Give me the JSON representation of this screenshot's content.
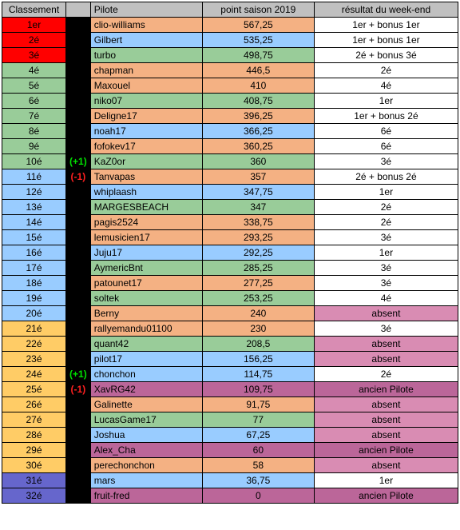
{
  "colors": {
    "header": "#c0c0c0",
    "delta_bg": "#000000",
    "delta_up": "#00e000",
    "delta_down": "#ff2020",
    "red": "#ff0000",
    "green": "#99cc99",
    "blue": "#99ccff",
    "orange": "#f4b183",
    "yellow": "#ffcc66",
    "purple": "#6666cc",
    "white": "#ffffff",
    "pink": "#d98cb3",
    "darkpink": "#bb6699"
  },
  "headers": {
    "rank": "Classement",
    "delta": "",
    "pilot": "Pilote",
    "points": "point saison 2019",
    "result": "résultat du week-end"
  },
  "rows": [
    {
      "rank": "1er",
      "delta": "",
      "pilot": "clio-williams",
      "points": "567,25",
      "result": "1er + bonus 1er",
      "rank_bg": "red",
      "pilot_bg": "orange",
      "points_bg": "orange",
      "result_bg": "white"
    },
    {
      "rank": "2é",
      "delta": "",
      "pilot": "Gilbert",
      "points": "535,25",
      "result": "1er + bonus 1er",
      "rank_bg": "red",
      "pilot_bg": "blue",
      "points_bg": "blue",
      "result_bg": "white"
    },
    {
      "rank": "3é",
      "delta": "",
      "pilot": "turbo",
      "points": "498,75",
      "result": "2é + bonus 3é",
      "rank_bg": "red",
      "pilot_bg": "green",
      "points_bg": "green",
      "result_bg": "white"
    },
    {
      "rank": "4é",
      "delta": "",
      "pilot": "chapman",
      "points": "446,5",
      "result": "2é",
      "rank_bg": "green",
      "pilot_bg": "orange",
      "points_bg": "orange",
      "result_bg": "white"
    },
    {
      "rank": "5é",
      "delta": "",
      "pilot": "Maxouel",
      "points": "410",
      "result": "4é",
      "rank_bg": "green",
      "pilot_bg": "orange",
      "points_bg": "orange",
      "result_bg": "white"
    },
    {
      "rank": "6é",
      "delta": "",
      "pilot": "niko07",
      "points": "408,75",
      "result": "1er",
      "rank_bg": "green",
      "pilot_bg": "green",
      "points_bg": "green",
      "result_bg": "white"
    },
    {
      "rank": "7é",
      "delta": "",
      "pilot": "Deligne17",
      "points": "396,25",
      "result": "1er + bonus 2é",
      "rank_bg": "green",
      "pilot_bg": "orange",
      "points_bg": "orange",
      "result_bg": "white"
    },
    {
      "rank": "8é",
      "delta": "",
      "pilot": "noah17",
      "points": "366,25",
      "result": "6é",
      "rank_bg": "green",
      "pilot_bg": "blue",
      "points_bg": "blue",
      "result_bg": "white"
    },
    {
      "rank": "9é",
      "delta": "",
      "pilot": "fofokev17",
      "points": "360,25",
      "result": "6é",
      "rank_bg": "green",
      "pilot_bg": "orange",
      "points_bg": "orange",
      "result_bg": "white"
    },
    {
      "rank": "10é",
      "delta": "(+1)",
      "delta_dir": "up",
      "pilot": "KaZ0or",
      "points": "360",
      "result": "3é",
      "rank_bg": "green",
      "pilot_bg": "green",
      "points_bg": "green",
      "result_bg": "white"
    },
    {
      "rank": "11é",
      "delta": "(-1)",
      "delta_dir": "down",
      "pilot": "Tanvapas",
      "points": "357",
      "result": "2é + bonus 2é",
      "rank_bg": "blue",
      "pilot_bg": "orange",
      "points_bg": "orange",
      "result_bg": "white"
    },
    {
      "rank": "12é",
      "delta": "",
      "pilot": "whiplaash",
      "points": "347,75",
      "result": "1er",
      "rank_bg": "blue",
      "pilot_bg": "blue",
      "points_bg": "blue",
      "result_bg": "white"
    },
    {
      "rank": "13é",
      "delta": "",
      "pilot": "MARGESBEACH",
      "points": "347",
      "result": "2é",
      "rank_bg": "blue",
      "pilot_bg": "green",
      "points_bg": "green",
      "result_bg": "white"
    },
    {
      "rank": "14é",
      "delta": "",
      "pilot": "pagis2524",
      "points": "338,75",
      "result": "2é",
      "rank_bg": "blue",
      "pilot_bg": "orange",
      "points_bg": "orange",
      "result_bg": "white"
    },
    {
      "rank": "15é",
      "delta": "",
      "pilot": "lemusicien17",
      "points": "293,25",
      "result": "3é",
      "rank_bg": "blue",
      "pilot_bg": "orange",
      "points_bg": "orange",
      "result_bg": "white"
    },
    {
      "rank": "16é",
      "delta": "",
      "pilot": "Juju17",
      "points": "292,25",
      "result": "1er",
      "rank_bg": "blue",
      "pilot_bg": "blue",
      "points_bg": "blue",
      "result_bg": "white"
    },
    {
      "rank": "17é",
      "delta": "",
      "pilot": "AymericBnt",
      "points": "285,25",
      "result": "3é",
      "rank_bg": "blue",
      "pilot_bg": "green",
      "points_bg": "green",
      "result_bg": "white"
    },
    {
      "rank": "18é",
      "delta": "",
      "pilot": "patounet17",
      "points": "277,25",
      "result": "3é",
      "rank_bg": "blue",
      "pilot_bg": "orange",
      "points_bg": "orange",
      "result_bg": "white"
    },
    {
      "rank": "19é",
      "delta": "",
      "pilot": "soltek",
      "points": "253,25",
      "result": "4é",
      "rank_bg": "blue",
      "pilot_bg": "green",
      "points_bg": "green",
      "result_bg": "white"
    },
    {
      "rank": "20é",
      "delta": "",
      "pilot": "Berny",
      "points": "240",
      "result": "absent",
      "rank_bg": "blue",
      "pilot_bg": "orange",
      "points_bg": "orange",
      "result_bg": "pink"
    },
    {
      "rank": "21é",
      "delta": "",
      "pilot": "rallyemandu01100",
      "points": "230",
      "result": "3é",
      "rank_bg": "yellow",
      "pilot_bg": "orange",
      "points_bg": "orange",
      "result_bg": "white"
    },
    {
      "rank": "22é",
      "delta": "",
      "pilot": "quant42",
      "points": "208,5",
      "result": "absent",
      "rank_bg": "yellow",
      "pilot_bg": "green",
      "points_bg": "green",
      "result_bg": "pink"
    },
    {
      "rank": "23é",
      "delta": "",
      "pilot": "pilot17",
      "points": "156,25",
      "result": "absent",
      "rank_bg": "yellow",
      "pilot_bg": "blue",
      "points_bg": "blue",
      "result_bg": "pink"
    },
    {
      "rank": "24é",
      "delta": "(+1)",
      "delta_dir": "up",
      "pilot": "chonchon",
      "points": "114,75",
      "result": "2é",
      "rank_bg": "yellow",
      "pilot_bg": "blue",
      "points_bg": "blue",
      "result_bg": "white"
    },
    {
      "rank": "25é",
      "delta": "(-1)",
      "delta_dir": "down",
      "pilot": "XavRG42",
      "points": "109,75",
      "result": "ancien Pilote",
      "rank_bg": "yellow",
      "pilot_bg": "darkpink",
      "points_bg": "darkpink",
      "result_bg": "darkpink"
    },
    {
      "rank": "26é",
      "delta": "",
      "pilot": "Galinette",
      "points": "91,75",
      "result": "absent",
      "rank_bg": "yellow",
      "pilot_bg": "orange",
      "points_bg": "orange",
      "result_bg": "pink"
    },
    {
      "rank": "27é",
      "delta": "",
      "pilot": "LucasGame17",
      "points": "77",
      "result": "absent",
      "rank_bg": "yellow",
      "pilot_bg": "green",
      "points_bg": "green",
      "result_bg": "pink"
    },
    {
      "rank": "28é",
      "delta": "",
      "pilot": "Joshua",
      "points": "67,25",
      "result": "absent",
      "rank_bg": "yellow",
      "pilot_bg": "blue",
      "points_bg": "blue",
      "result_bg": "pink"
    },
    {
      "rank": "29é",
      "delta": "",
      "pilot": "Alex_Cha",
      "points": "60",
      "result": "ancien Pilote",
      "rank_bg": "yellow",
      "pilot_bg": "darkpink",
      "points_bg": "darkpink",
      "result_bg": "darkpink"
    },
    {
      "rank": "30é",
      "delta": "",
      "pilot": "perechonchon",
      "points": "58",
      "result": "absent",
      "rank_bg": "yellow",
      "pilot_bg": "orange",
      "points_bg": "orange",
      "result_bg": "pink"
    },
    {
      "rank": "31é",
      "delta": "",
      "pilot": "mars",
      "points": "36,75",
      "result": "1er",
      "rank_bg": "purple",
      "pilot_bg": "blue",
      "points_bg": "blue",
      "result_bg": "white"
    },
    {
      "rank": "32é",
      "delta": "",
      "pilot": "fruit-fred",
      "points": "0",
      "result": "ancien Pilote",
      "rank_bg": "purple",
      "pilot_bg": "darkpink",
      "points_bg": "darkpink",
      "result_bg": "darkpink"
    }
  ]
}
